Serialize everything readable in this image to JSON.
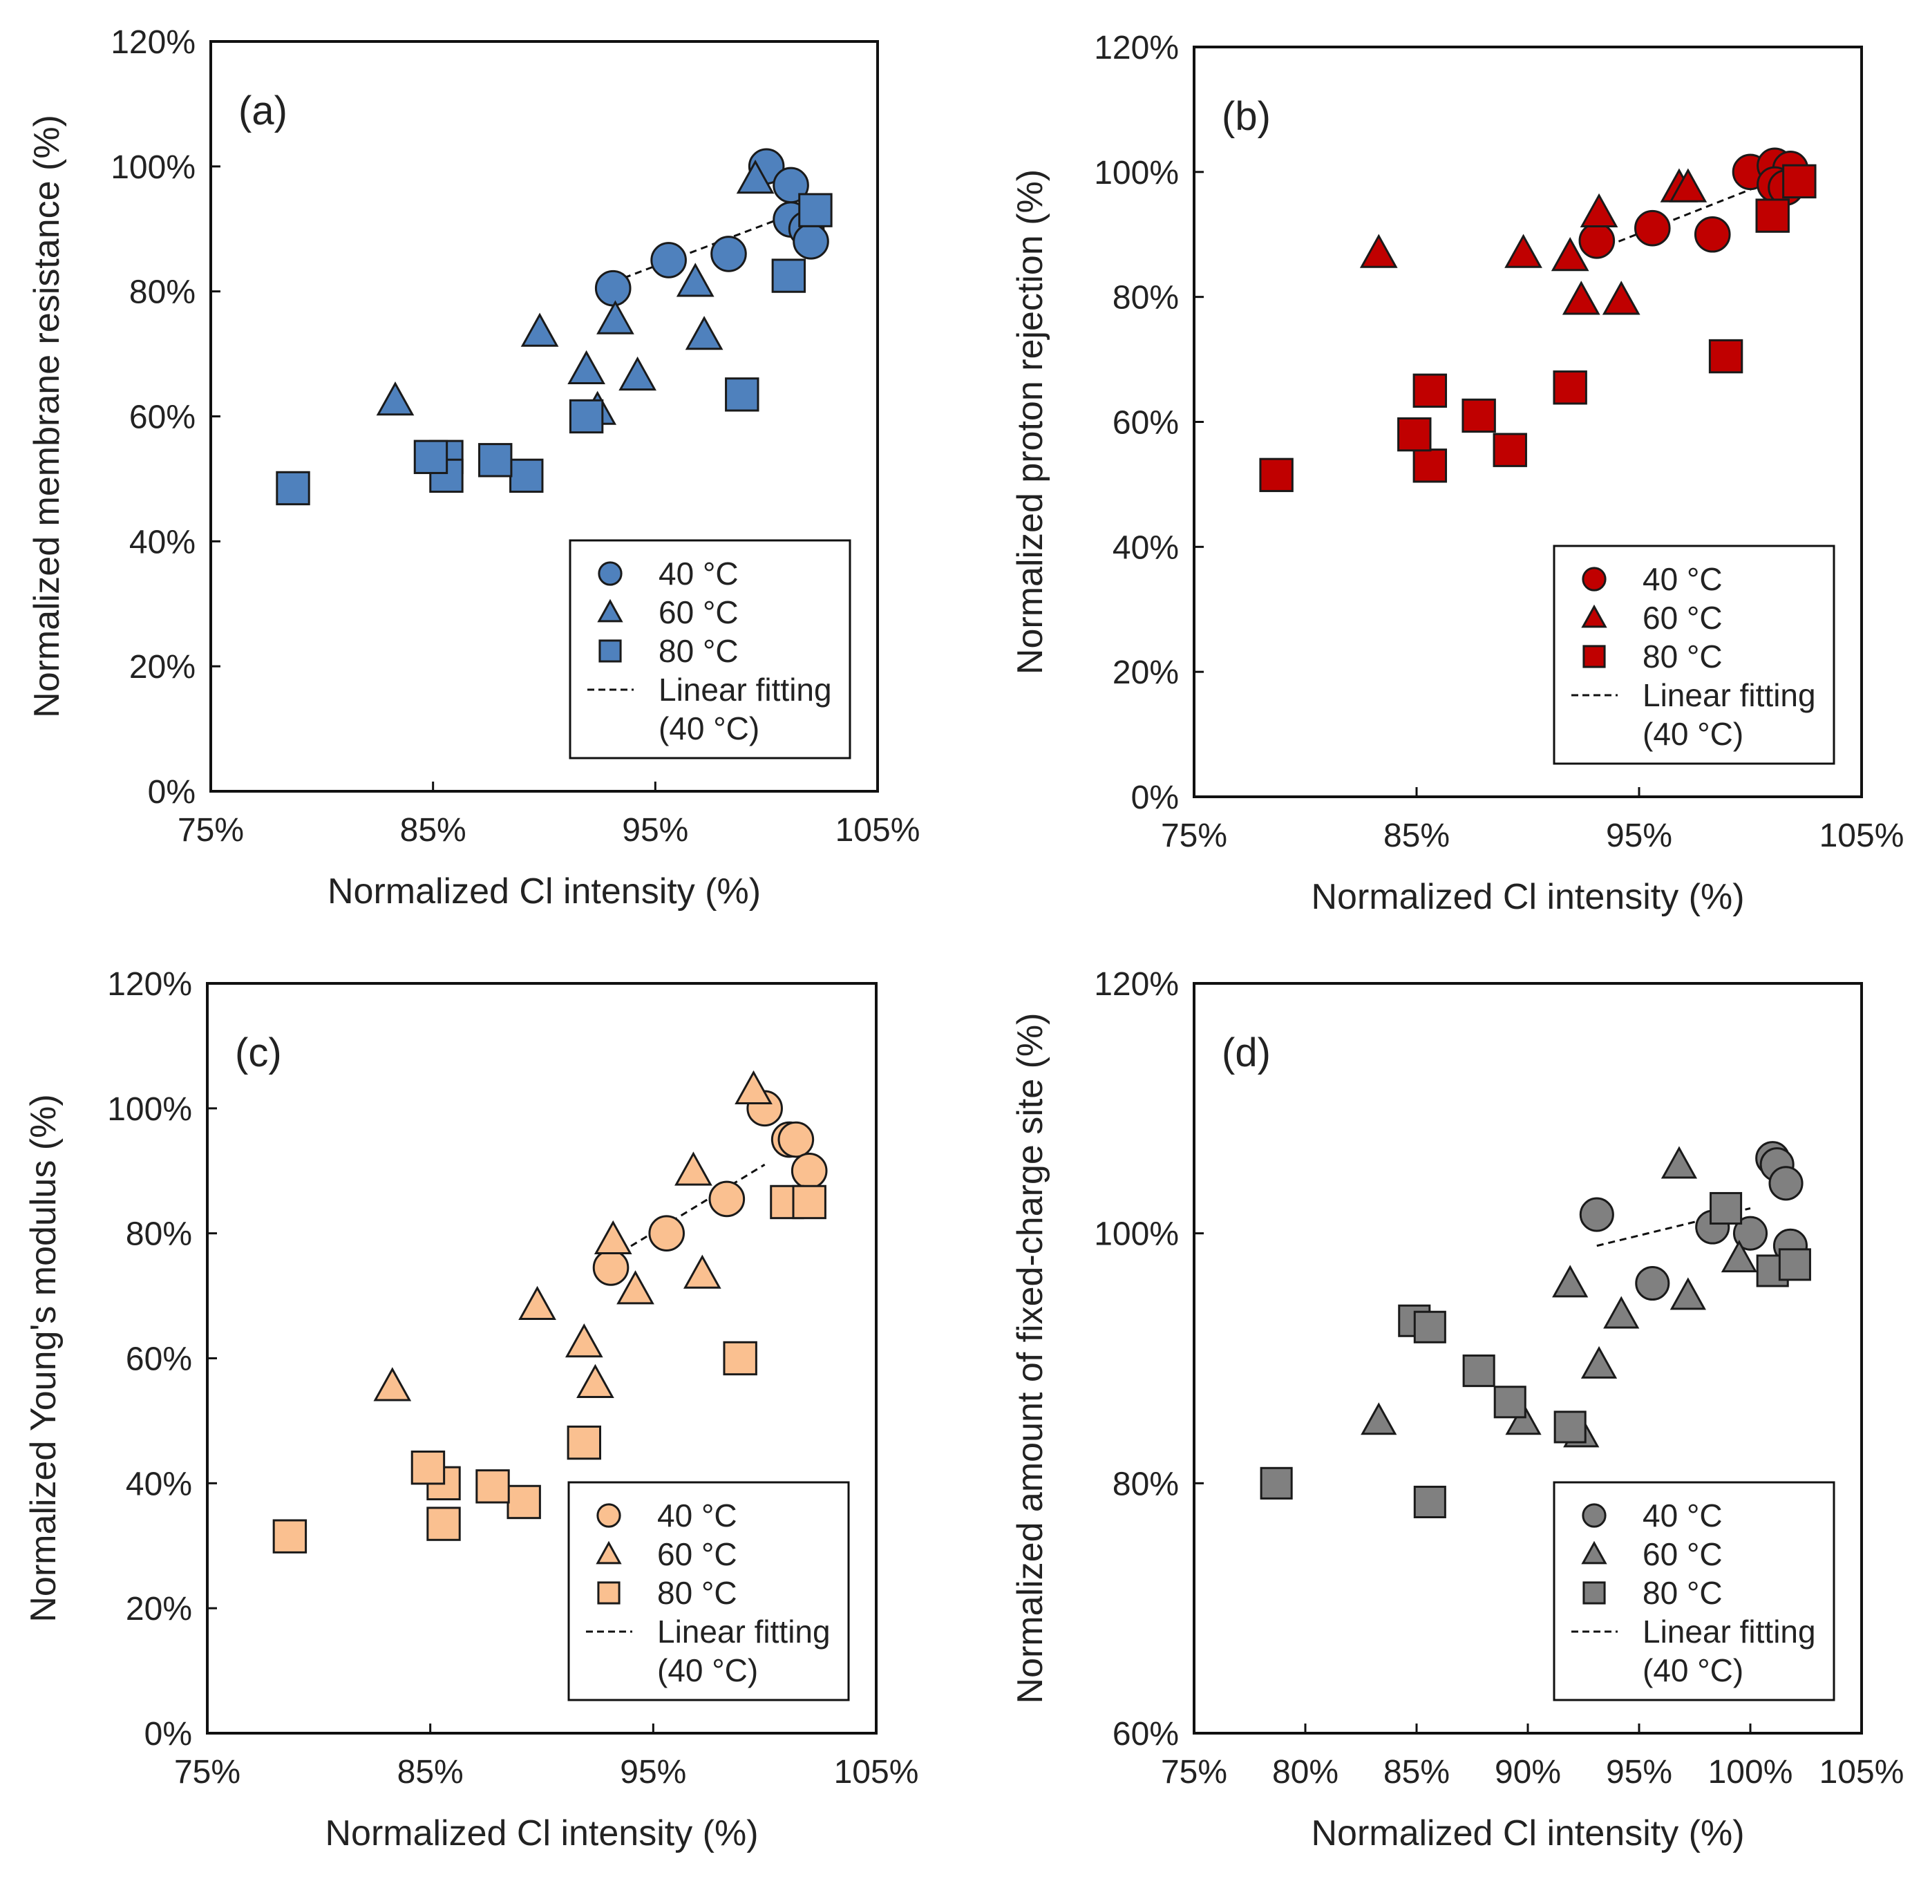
{
  "chart_data": [
    {
      "type": "scatter",
      "panel_label": "(a)",
      "xlabel": "Normalized Cl intensity (%)",
      "ylabel": "Normalized membrane resistance (%)",
      "xlim": [
        75,
        105
      ],
      "ylim": [
        0,
        120
      ],
      "xticks": [
        75,
        85,
        95,
        105
      ],
      "xtick_labels": [
        "75%",
        "85%",
        "95%",
        "105%"
      ],
      "yticks": [
        0,
        20,
        40,
        60,
        80,
        100,
        120
      ],
      "ytick_labels": [
        "0%",
        "20%",
        "40%",
        "60%",
        "80%",
        "100%",
        "120%"
      ],
      "fill": "#4f81bd",
      "legend": {
        "position": "bottom-right",
        "fit_label": "Linear fitting",
        "fit_sub": "(40 °C)"
      },
      "series": [
        {
          "name": "40 °C",
          "marker": "circle",
          "points": [
            [
              100.0,
              100
            ],
            [
              101.1,
              97
            ],
            [
              101.1,
              91.5
            ],
            [
              101.8,
              90
            ],
            [
              102.0,
              88
            ],
            [
              93.1,
              80.5
            ],
            [
              95.6,
              85
            ],
            [
              98.3,
              86
            ]
          ]
        },
        {
          "name": "60 °C",
          "marker": "triangle",
          "points": [
            [
              99.5,
              98
            ],
            [
              96.8,
              81.5
            ],
            [
              97.2,
              73
            ],
            [
              93.2,
              75.5
            ],
            [
              94.2,
              66.5
            ],
            [
              91.9,
              67.5
            ],
            [
              92.4,
              61
            ],
            [
              89.8,
              73.5
            ],
            [
              83.3,
              62.5
            ]
          ]
        },
        {
          "name": "80 °C",
          "marker": "square",
          "points": [
            [
              102.2,
              93
            ],
            [
              101.0,
              82.5
            ],
            [
              98.9,
              63.5
            ],
            [
              91.9,
              60
            ],
            [
              89.2,
              50.5
            ],
            [
              87.8,
              53
            ],
            [
              85.6,
              53.5
            ],
            [
              85.6,
              50.5
            ],
            [
              84.9,
              53.5
            ],
            [
              78.7,
              48.5
            ]
          ]
        }
      ],
      "fit": {
        "x": [
          93.1,
          102
        ],
        "y": [
          81.5,
          93.5
        ]
      }
    },
    {
      "type": "scatter",
      "panel_label": "(b)",
      "xlabel": "Normalized Cl intensity (%)",
      "ylabel": "Normalized proton rejection (%)",
      "xlim": [
        75,
        105
      ],
      "ylim": [
        0,
        120
      ],
      "xticks": [
        75,
        85,
        95,
        105
      ],
      "xtick_labels": [
        "75%",
        "85%",
        "95%",
        "105%"
      ],
      "yticks": [
        0,
        20,
        40,
        60,
        80,
        100,
        120
      ],
      "ytick_labels": [
        "0%",
        "20%",
        "40%",
        "60%",
        "80%",
        "100%",
        "120%"
      ],
      "fill": "#c00000",
      "legend": {
        "position": "bottom-right",
        "fit_label": "Linear fitting",
        "fit_sub": "(40 °C)"
      },
      "series": [
        {
          "name": "40 °C",
          "marker": "circle",
          "points": [
            [
              100.0,
              100
            ],
            [
              101.1,
              101
            ],
            [
              101.8,
              100.5
            ],
            [
              101.1,
              98
            ],
            [
              101.6,
              97.5
            ],
            [
              93.1,
              89
            ],
            [
              95.6,
              91
            ],
            [
              98.3,
              90
            ]
          ]
        },
        {
          "name": "60 °C",
          "marker": "triangle",
          "points": [
            [
              83.3,
              87
            ],
            [
              89.8,
              87
            ],
            [
              91.9,
              86.5
            ],
            [
              93.2,
              93.5
            ],
            [
              92.4,
              79.5
            ],
            [
              94.2,
              79.5
            ],
            [
              96.8,
              97.5
            ],
            [
              97.2,
              97.5
            ]
          ]
        },
        {
          "name": "80 °C",
          "marker": "square",
          "points": [
            [
              102.2,
              98.5
            ],
            [
              101.0,
              93
            ],
            [
              98.9,
              70.5
            ],
            [
              91.9,
              65.5
            ],
            [
              89.2,
              55.5
            ],
            [
              87.8,
              61
            ],
            [
              85.6,
              65
            ],
            [
              85.6,
              53
            ],
            [
              84.9,
              58
            ],
            [
              78.7,
              51.5
            ]
          ]
        }
      ],
      "fit": {
        "x": [
          93.1,
          102
        ],
        "y": [
          87.5,
          100
        ]
      }
    },
    {
      "type": "scatter",
      "panel_label": "(c)",
      "xlabel": "Normalized Cl intensity (%)",
      "ylabel": "Normalized Young's modulus (%)",
      "xlim": [
        75,
        105
      ],
      "ylim": [
        0,
        120
      ],
      "xticks": [
        75,
        85,
        95,
        105
      ],
      "xtick_labels": [
        "75%",
        "85%",
        "95%",
        "105%"
      ],
      "yticks": [
        0,
        20,
        40,
        60,
        80,
        100,
        120
      ],
      "ytick_labels": [
        "0%",
        "20%",
        "40%",
        "60%",
        "80%",
        "100%",
        "120%"
      ],
      "fill": "#fac090",
      "legend": {
        "position": "bottom-right",
        "fit_label": "Linear fitting",
        "fit_sub": "(40 °C)"
      },
      "series": [
        {
          "name": "40 °C",
          "marker": "circle",
          "points": [
            [
              100.0,
              100
            ],
            [
              101.1,
              95
            ],
            [
              101.4,
              95
            ],
            [
              102.0,
              90
            ],
            [
              93.1,
              74.5
            ],
            [
              95.6,
              80
            ],
            [
              98.3,
              85.5
            ]
          ]
        },
        {
          "name": "60 °C",
          "marker": "triangle",
          "points": [
            [
              99.5,
              103
            ],
            [
              96.8,
              90
            ],
            [
              97.2,
              73.5
            ],
            [
              93.2,
              79
            ],
            [
              94.2,
              71
            ],
            [
              91.9,
              62.5
            ],
            [
              92.4,
              56
            ],
            [
              89.8,
              68.5
            ],
            [
              83.3,
              55.5
            ]
          ]
        },
        {
          "name": "80 °C",
          "marker": "square",
          "points": [
            [
              101.0,
              85
            ],
            [
              102.0,
              85
            ],
            [
              98.9,
              60
            ],
            [
              91.9,
              46.5
            ],
            [
              89.2,
              37
            ],
            [
              87.8,
              39.5
            ],
            [
              85.6,
              40
            ],
            [
              85.6,
              33.5
            ],
            [
              84.9,
              42.5
            ],
            [
              78.7,
              31.5
            ]
          ]
        }
      ],
      "fit": {
        "x": [
          93.1,
          100
        ],
        "y": [
          76,
          91
        ]
      }
    },
    {
      "type": "scatter",
      "panel_label": "(d)",
      "xlabel": "Normalized Cl intensity (%)",
      "ylabel": "Normalized amount of fixed-charge site (%)",
      "xlim": [
        75,
        105
      ],
      "ylim": [
        60,
        120
      ],
      "xticks": [
        75,
        80,
        85,
        90,
        95,
        100,
        105
      ],
      "xtick_labels": [
        "75%",
        "80%",
        "85%",
        "90%",
        "95%",
        "100%",
        "105%"
      ],
      "yticks": [
        60,
        80,
        100,
        120
      ],
      "ytick_labels": [
        "60%",
        "80%",
        "100%",
        "120%"
      ],
      "fill": "#808080",
      "legend": {
        "position": "bottom-right",
        "fit_label": "Linear fitting",
        "fit_sub": "(40 °C)"
      },
      "series": [
        {
          "name": "40 °C",
          "marker": "circle",
          "points": [
            [
              101.0,
              106
            ],
            [
              101.2,
              105.5
            ],
            [
              101.6,
              104
            ],
            [
              93.1,
              101.5
            ],
            [
              98.3,
              100.5
            ],
            [
              100.0,
              100
            ],
            [
              101.8,
              99
            ],
            [
              95.6,
              96
            ]
          ]
        },
        {
          "name": "60 °C",
          "marker": "triangle",
          "points": [
            [
              96.8,
              105.5
            ],
            [
              99.5,
              98
            ],
            [
              97.2,
              95
            ],
            [
              91.9,
              96
            ],
            [
              94.2,
              93.5
            ],
            [
              93.2,
              89.5
            ],
            [
              89.8,
              85
            ],
            [
              83.3,
              85
            ],
            [
              92.4,
              84
            ]
          ]
        },
        {
          "name": "80 °C",
          "marker": "square",
          "points": [
            [
              98.9,
              102
            ],
            [
              101.0,
              97
            ],
            [
              102.0,
              97.5
            ],
            [
              84.9,
              93
            ],
            [
              85.6,
              92.5
            ],
            [
              87.8,
              89
            ],
            [
              89.2,
              86.5
            ],
            [
              91.9,
              84.5
            ],
            [
              78.7,
              80
            ],
            [
              85.6,
              78.5
            ]
          ]
        }
      ],
      "fit": {
        "x": [
          93.1,
          100
        ],
        "y": [
          99,
          102
        ]
      }
    }
  ]
}
